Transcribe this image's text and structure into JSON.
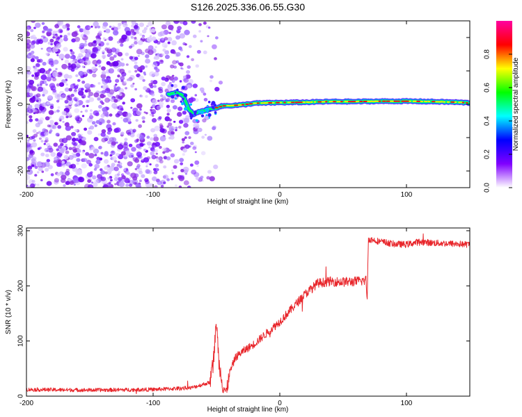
{
  "chart_data": [
    {
      "type": "heatmap",
      "title": "S126.2025.336.06.55.G30",
      "xlabel": "Height of straight line (km)",
      "ylabel": "Frequency (Hz)",
      "xlim": [
        -200,
        150
      ],
      "ylim": [
        -25,
        25
      ],
      "xticks": [
        -200,
        -100,
        0,
        100
      ],
      "yticks": [
        20,
        10,
        0,
        -10,
        -20
      ],
      "colorbar": {
        "label": "Normalized spectral amplitude",
        "range": [
          0,
          1
        ],
        "ticks": [
          "0.0",
          "0.2",
          "0.4",
          "0.6",
          "0.8"
        ],
        "colors": [
          "#ffffff",
          "#8000ff",
          "#0000ff",
          "#00ffff",
          "#00ff00",
          "#ffff00",
          "#ff0000",
          "#ff00a0"
        ]
      },
      "frequency_trace": {
        "x": [
          -88,
          -82,
          -76,
          -72,
          -68,
          -62,
          -55,
          -45,
          -30,
          -20,
          0,
          20,
          40,
          60,
          80,
          100,
          120,
          140,
          150
        ],
        "y": [
          3,
          3.5,
          2.5,
          -1.5,
          -3,
          -2,
          -1.5,
          -0.5,
          -0.2,
          0.3,
          0.5,
          0.6,
          0.8,
          0.8,
          0.9,
          0.9,
          0.8,
          0.6,
          0.4
        ]
      },
      "noise_region_x": [
        -200,
        -60
      ]
    },
    {
      "type": "line",
      "title": "",
      "xlabel": "Height of straight line (km)",
      "ylabel": "SNR (10 * v/v)",
      "xlim": [
        -200,
        150
      ],
      "ylim": [
        0,
        305
      ],
      "xticks": [
        -200,
        -100,
        0,
        100
      ],
      "yticks": [
        0,
        100,
        200,
        300
      ],
      "series": [
        {
          "name": "SNR",
          "color": "#e8262b",
          "x": [
            -200,
            -150,
            -100,
            -70,
            -55,
            -52,
            -50,
            -48,
            -45,
            -42,
            -40,
            -35,
            -30,
            -20,
            -10,
            0,
            10,
            20,
            30,
            40,
            50,
            60,
            68,
            69,
            70,
            80,
            90,
            100,
            110,
            120,
            130,
            140,
            150
          ],
          "y": [
            12,
            11,
            12,
            15,
            25,
            75,
            135,
            60,
            20,
            5,
            40,
            70,
            80,
            95,
            115,
            135,
            160,
            185,
            205,
            208,
            207,
            208,
            210,
            180,
            285,
            280,
            276,
            275,
            280,
            278,
            277,
            276,
            275
          ]
        }
      ]
    }
  ]
}
